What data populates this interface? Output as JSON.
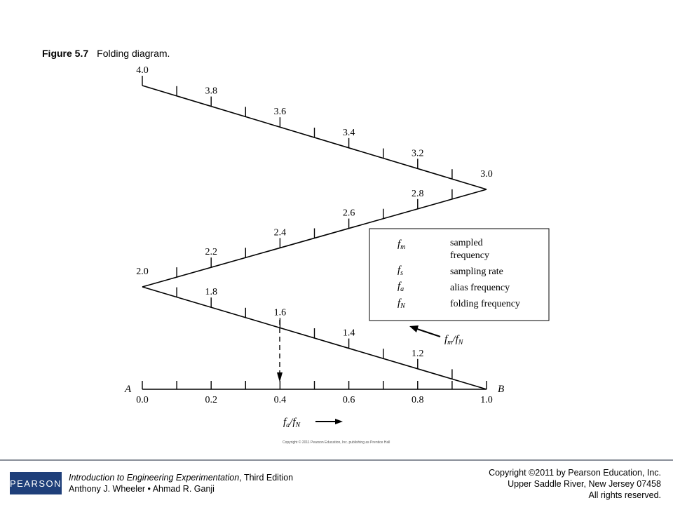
{
  "caption": {
    "figure_number": "Figure 5.7",
    "figure_title": "Folding diagram."
  },
  "diagram": {
    "upper_labels": [
      "4.0",
      "3.8",
      "3.6",
      "3.4",
      "3.2",
      "3.0"
    ],
    "middle_labels": [
      "2.0",
      "2.2",
      "2.4",
      "2.6",
      "2.8"
    ],
    "lower_labels": [
      "1.8",
      "1.6",
      "1.4",
      "1.2"
    ],
    "axis_labels": [
      "0.0",
      "0.2",
      "0.4",
      "0.6",
      "0.8",
      "1.0"
    ],
    "point_a": "A",
    "point_b": "B",
    "fm_fn_label": "fm/fN",
    "fa_fn_label": "fa/fN",
    "legend": [
      {
        "symbol": "fm",
        "desc": "sampled frequency"
      },
      {
        "symbol": "fs",
        "desc": "sampling rate"
      },
      {
        "symbol": "fa",
        "desc": "alias frequency"
      },
      {
        "symbol": "fN",
        "desc": "folding frequency"
      }
    ],
    "small_copyright": "Copyright © 2011 Pearson Education, Inc. publishing as Prentice Hall"
  },
  "footer": {
    "logo_text": "PEARSON",
    "book_title": "Introduction to Engineering Experimentation",
    "book_edition": ", Third Edition",
    "authors": "Anthony J. Wheeler • Ahmad R. Ganji",
    "copyright_line1": "Copyright ©2011 by Pearson Education, Inc.",
    "copyright_line2": "Upper Saddle River, New Jersey 07458",
    "copyright_line3": "All rights reserved."
  }
}
